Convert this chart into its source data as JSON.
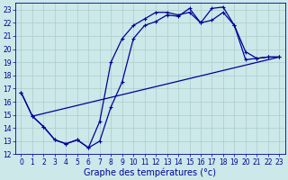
{
  "xlabel": "Graphe des températures (°c)",
  "background_color": "#cce8e8",
  "grid_color": "#aacccc",
  "line_color": "#000099",
  "xlim_min": -0.5,
  "xlim_max": 23.5,
  "ylim_min": 12,
  "ylim_max": 23.5,
  "xticks": [
    0,
    1,
    2,
    3,
    4,
    5,
    6,
    7,
    8,
    9,
    10,
    11,
    12,
    13,
    14,
    15,
    16,
    17,
    18,
    19,
    20,
    21,
    22,
    23
  ],
  "yticks": [
    12,
    13,
    14,
    15,
    16,
    17,
    18,
    19,
    20,
    21,
    22,
    23
  ],
  "line1_x": [
    0,
    1,
    2,
    3,
    4,
    5,
    6,
    7,
    8,
    9,
    10,
    11,
    12,
    13,
    14,
    15,
    16,
    17,
    18,
    19,
    20,
    21,
    22,
    23
  ],
  "line1_y": [
    16.7,
    14.9,
    14.1,
    13.1,
    12.8,
    13.1,
    12.5,
    13.0,
    15.6,
    17.5,
    20.8,
    21.8,
    22.1,
    22.6,
    22.5,
    23.1,
    22.0,
    23.1,
    23.2,
    21.8,
    19.8,
    19.3,
    19.4,
    19.4
  ],
  "line2_x": [
    0,
    1,
    2,
    3,
    4,
    5,
    6,
    7,
    8,
    9,
    10,
    11,
    12,
    13,
    14,
    15,
    16,
    17,
    18,
    19,
    20,
    21,
    22,
    23
  ],
  "line2_y": [
    16.7,
    14.9,
    14.1,
    13.1,
    12.8,
    13.1,
    12.5,
    14.5,
    19.0,
    20.8,
    21.8,
    22.3,
    22.8,
    22.8,
    22.6,
    22.8,
    22.0,
    22.2,
    22.8,
    21.8,
    19.2,
    19.3,
    19.4,
    19.4
  ],
  "line3_x": [
    1,
    23
  ],
  "line3_y": [
    14.9,
    19.4
  ],
  "xlabel_fontsize": 7,
  "tick_fontsize": 5.5,
  "linewidth": 0.9,
  "markersize": 3.5
}
